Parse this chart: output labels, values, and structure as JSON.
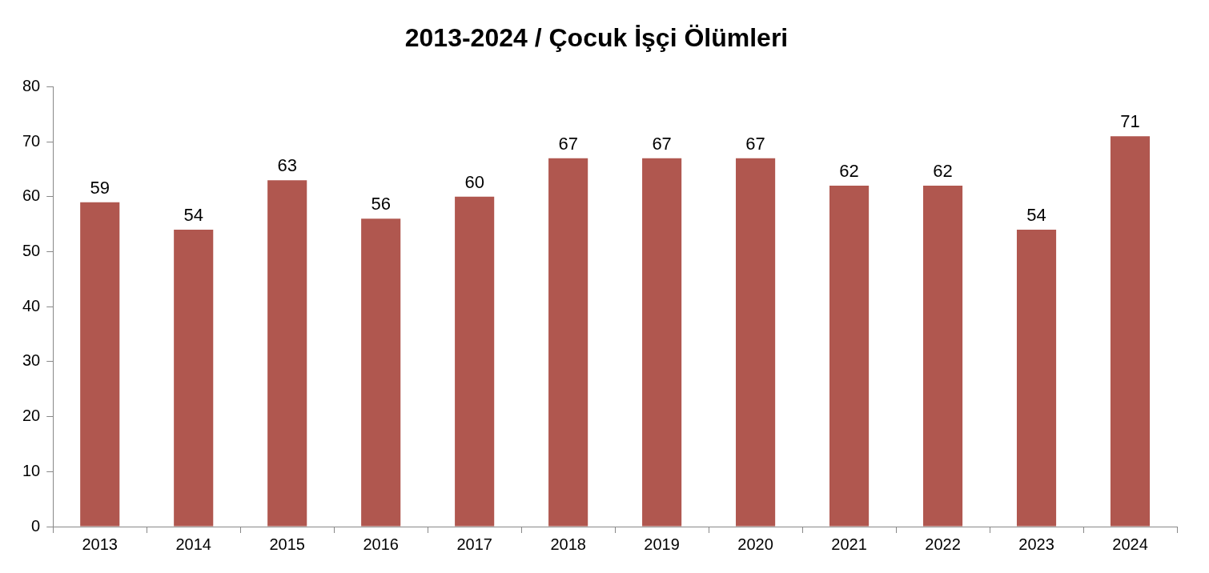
{
  "chart_data": {
    "type": "bar",
    "title": "2013-2024 / Çocuk İşçi Ölümleri",
    "categories": [
      "2013",
      "2014",
      "2015",
      "2016",
      "2017",
      "2018",
      "2019",
      "2020",
      "2021",
      "2022",
      "2023",
      "2024"
    ],
    "values": [
      59,
      54,
      63,
      56,
      60,
      67,
      67,
      67,
      62,
      62,
      54,
      71
    ],
    "color": "#b0574f",
    "ylim": [
      0,
      80
    ],
    "yticks": [
      0,
      10,
      20,
      30,
      40,
      50,
      60,
      70,
      80
    ],
    "grid": false,
    "legend": false,
    "data_labels": true
  }
}
